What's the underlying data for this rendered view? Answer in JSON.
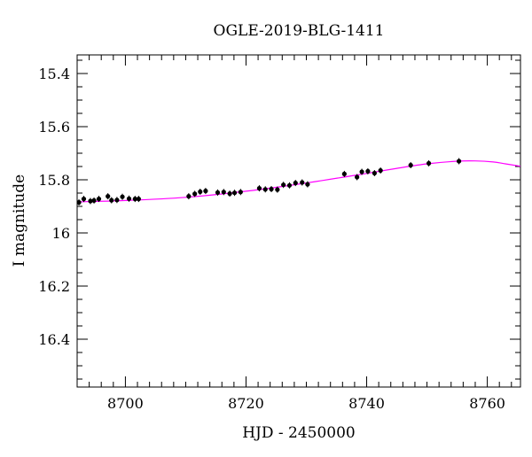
{
  "chart_data": {
    "type": "scatter",
    "title": "OGLE-2019-BLG-1411",
    "xlabel": "HJD - 2450000",
    "ylabel": "I magnitude",
    "xlim": [
      8692,
      8765.5
    ],
    "ylim": [
      16.58,
      15.33
    ],
    "y_inverted": true,
    "grid": false,
    "legend": "none",
    "x_ticks": [
      {
        "value": 8700,
        "label": "8700"
      },
      {
        "value": 8720,
        "label": "8720"
      },
      {
        "value": 8740,
        "label": "8740"
      },
      {
        "value": 8760,
        "label": "8760"
      }
    ],
    "y_ticks": [
      {
        "value": 15.4,
        "label": "15.4"
      },
      {
        "value": 15.6,
        "label": "15.6"
      },
      {
        "value": 15.8,
        "label": "15.8"
      },
      {
        "value": 16.0,
        "label": "16"
      },
      {
        "value": 16.2,
        "label": "16.2"
      },
      {
        "value": 16.4,
        "label": "16.4"
      }
    ],
    "series": [
      {
        "type": "scatter",
        "color": "#000000",
        "points": [
          {
            "x": 8692.3,
            "y": 15.885
          },
          {
            "x": 8693.1,
            "y": 15.872
          },
          {
            "x": 8694.2,
            "y": 15.88
          },
          {
            "x": 8694.8,
            "y": 15.878
          },
          {
            "x": 8695.6,
            "y": 15.872
          },
          {
            "x": 8697.1,
            "y": 15.862
          },
          {
            "x": 8697.7,
            "y": 15.877
          },
          {
            "x": 8698.6,
            "y": 15.876
          },
          {
            "x": 8699.5,
            "y": 15.864
          },
          {
            "x": 8700.6,
            "y": 15.871
          },
          {
            "x": 8701.6,
            "y": 15.872
          },
          {
            "x": 8702.2,
            "y": 15.872
          },
          {
            "x": 8710.5,
            "y": 15.862
          },
          {
            "x": 8711.5,
            "y": 15.853
          },
          {
            "x": 8712.4,
            "y": 15.845
          },
          {
            "x": 8713.3,
            "y": 15.842
          },
          {
            "x": 8715.3,
            "y": 15.848
          },
          {
            "x": 8716.3,
            "y": 15.846
          },
          {
            "x": 8717.3,
            "y": 15.852
          },
          {
            "x": 8718.1,
            "y": 15.849
          },
          {
            "x": 8719.1,
            "y": 15.846
          },
          {
            "x": 8722.2,
            "y": 15.832
          },
          {
            "x": 8723.2,
            "y": 15.836
          },
          {
            "x": 8724.2,
            "y": 15.835
          },
          {
            "x": 8725.2,
            "y": 15.837
          },
          {
            "x": 8726.2,
            "y": 15.819
          },
          {
            "x": 8727.2,
            "y": 15.821
          },
          {
            "x": 8728.2,
            "y": 15.812
          },
          {
            "x": 8729.3,
            "y": 15.81
          },
          {
            "x": 8730.2,
            "y": 15.817
          },
          {
            "x": 8736.3,
            "y": 15.778
          },
          {
            "x": 8738.4,
            "y": 15.79
          },
          {
            "x": 8739.2,
            "y": 15.77
          },
          {
            "x": 8740.2,
            "y": 15.768
          },
          {
            "x": 8741.3,
            "y": 15.775
          },
          {
            "x": 8742.3,
            "y": 15.765
          },
          {
            "x": 8747.3,
            "y": 15.745
          },
          {
            "x": 8750.3,
            "y": 15.738
          },
          {
            "x": 8755.3,
            "y": 15.73
          }
        ]
      },
      {
        "type": "line",
        "color": "#ff00ff",
        "points": [
          {
            "x": 8692.0,
            "y": 15.883
          },
          {
            "x": 8700.0,
            "y": 15.878
          },
          {
            "x": 8710.0,
            "y": 15.866
          },
          {
            "x": 8720.0,
            "y": 15.843
          },
          {
            "x": 8730.0,
            "y": 15.812
          },
          {
            "x": 8740.0,
            "y": 15.776
          },
          {
            "x": 8745.0,
            "y": 15.757
          },
          {
            "x": 8750.0,
            "y": 15.74
          },
          {
            "x": 8755.0,
            "y": 15.73
          },
          {
            "x": 8758.0,
            "y": 15.729
          },
          {
            "x": 8761.0,
            "y": 15.733
          },
          {
            "x": 8763.0,
            "y": 15.74
          },
          {
            "x": 8765.5,
            "y": 15.749
          }
        ]
      }
    ]
  }
}
